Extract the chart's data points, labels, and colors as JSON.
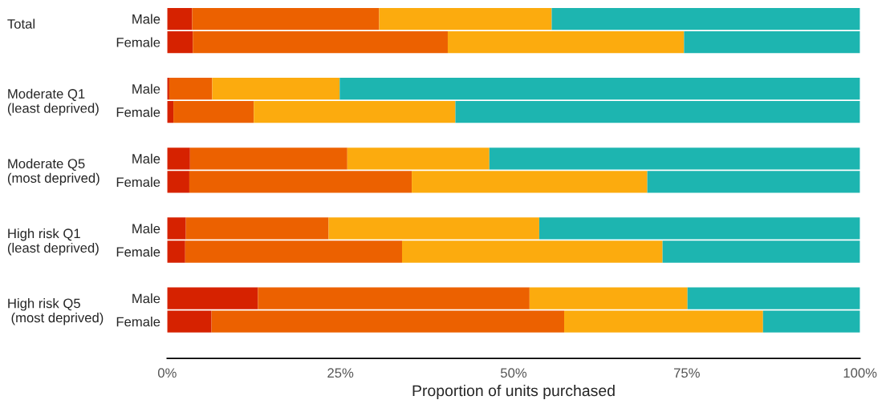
{
  "chart_data": {
    "type": "bar",
    "orientation": "horizontal",
    "stacked": true,
    "xlabel": "Proportion of units purchased",
    "categories": [
      "Male",
      "Female",
      "Male",
      "Female",
      "Male",
      "Female",
      "Male",
      "Female",
      "Male",
      "Female"
    ],
    "annotations": [
      "Total",
      "Moderate Q1\n(least deprived)",
      "Moderate Q5\n(most deprived)",
      "High risk Q1\n(least deprived)",
      "High risk Q5\n (most deprived)"
    ],
    "series": [
      {
        "color": "#d62200",
        "values": [
          3.6,
          3.7,
          0.3,
          0.9,
          3.3,
          3.2,
          2.7,
          2.6,
          13.1,
          6.4
        ]
      },
      {
        "color": "#ec6100",
        "values": [
          27.0,
          36.8,
          6.2,
          11.6,
          22.7,
          32.1,
          20.6,
          31.3,
          39.2,
          50.9
        ]
      },
      {
        "color": "#fcab0e",
        "values": [
          24.9,
          34.1,
          18.4,
          29.1,
          20.5,
          34.0,
          30.4,
          37.6,
          22.8,
          28.7
        ]
      },
      {
        "color": "#1db5b0",
        "values": [
          44.5,
          25.4,
          75.1,
          58.4,
          53.5,
          30.7,
          46.3,
          28.5,
          24.9,
          14.0
        ]
      }
    ],
    "xlim": [
      0,
      100
    ],
    "xticks": [
      {
        "value": 0,
        "label": "0%"
      },
      {
        "value": 25,
        "label": "25%"
      },
      {
        "value": 50,
        "label": "50%"
      },
      {
        "value": 75,
        "label": "75%"
      },
      {
        "value": 100,
        "label": "100%"
      }
    ],
    "grid": false,
    "legend": false
  }
}
